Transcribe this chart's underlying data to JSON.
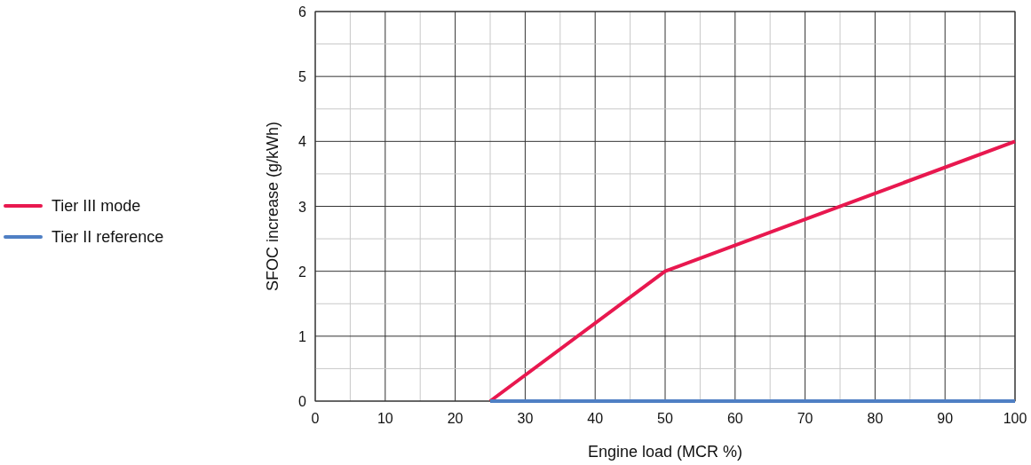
{
  "chart_data": {
    "type": "line",
    "xlabel": "Engine load (MCR %)",
    "ylabel": "SFOC increase (g/kWh)",
    "xlim": [
      0,
      100
    ],
    "ylim": [
      0,
      6
    ],
    "xticks": [
      0,
      {
        "value": 5,
        "label": null
      },
      10,
      {
        "value": 15,
        "label": null
      },
      20,
      {
        "value": 25,
        "label": null
      },
      30,
      {
        "value": 35,
        "label": null
      },
      40,
      {
        "value": 45,
        "label": null
      },
      50,
      {
        "value": 55,
        "label": null
      },
      60,
      {
        "value": 65,
        "label": null
      },
      70,
      {
        "value": 75,
        "label": null
      },
      80,
      {
        "value": 85,
        "label": null
      },
      90,
      {
        "value": 95,
        "label": null
      },
      100
    ],
    "yticks": [
      0,
      {
        "value": 0.5,
        "label": null
      },
      1,
      {
        "value": 1.5,
        "label": null
      },
      2,
      {
        "value": 2.5,
        "label": null
      },
      3,
      {
        "value": 3.5,
        "label": null
      },
      4,
      {
        "value": 4.5,
        "label": null
      },
      5,
      {
        "value": 5.5,
        "label": null
      },
      6
    ],
    "series": [
      {
        "name": "Tier III mode",
        "color": "#e8184f",
        "x": [
          25,
          50,
          100
        ],
        "values": [
          0,
          2,
          4
        ]
      },
      {
        "name": "Tier II reference",
        "color": "#4f7fc4",
        "x": [
          25,
          100
        ],
        "values": [
          0,
          0
        ]
      }
    ],
    "grid": true,
    "legend": "left",
    "marker": "none",
    "line_style": "solid"
  }
}
